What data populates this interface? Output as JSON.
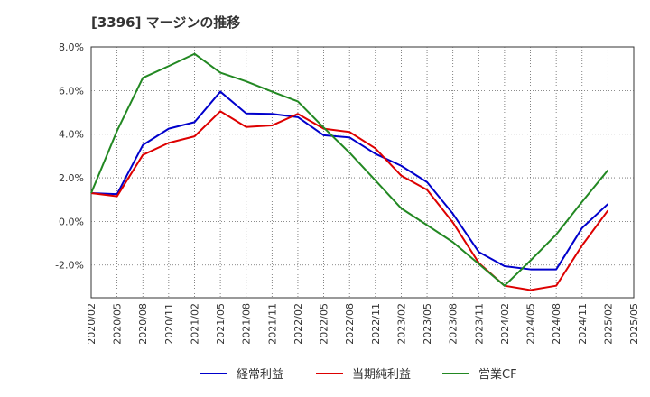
{
  "title": "[3396]  マージンの推移",
  "chart_data": {
    "type": "line",
    "title": "[3396]  マージンの推移",
    "xlabel": "",
    "ylabel": "",
    "x": [
      "2020/02",
      "2020/05",
      "2020/08",
      "2020/11",
      "2021/02",
      "2021/05",
      "2021/08",
      "2021/11",
      "2022/02",
      "2022/05",
      "2022/08",
      "2022/11",
      "2023/02",
      "2023/05",
      "2023/08",
      "2023/11",
      "2024/02",
      "2024/05",
      "2024/08",
      "2024/11",
      "2025/02",
      "2025/05"
    ],
    "ylim": [
      -3.5,
      8.0
    ],
    "yticks": [
      -2.0,
      0.0,
      2.0,
      4.0,
      6.0,
      8.0
    ],
    "ytick_labels": [
      "-2.0%",
      "0.0%",
      "2.0%",
      "4.0%",
      "6.0%",
      "8.0%"
    ],
    "grid": true,
    "legend_position": "bottom",
    "series": [
      {
        "name": "経常利益",
        "color": "#0000cc",
        "values": [
          1.3,
          1.25,
          3.5,
          4.25,
          4.55,
          5.95,
          4.95,
          4.93,
          4.78,
          3.95,
          3.85,
          3.1,
          2.55,
          1.8,
          0.35,
          -1.4,
          -2.05,
          -2.2,
          -2.2,
          -0.3,
          0.8,
          null
        ]
      },
      {
        "name": "当期純利益",
        "color": "#dd0000",
        "values": [
          1.3,
          1.15,
          3.05,
          3.6,
          3.9,
          5.05,
          4.33,
          4.4,
          4.93,
          4.25,
          4.1,
          3.35,
          2.1,
          1.45,
          -0.05,
          -1.9,
          -2.95,
          -3.15,
          -2.95,
          -1.1,
          0.5,
          null
        ]
      },
      {
        "name": "営業CF",
        "color": "#228822",
        "values": [
          1.3,
          4.15,
          6.58,
          7.12,
          7.68,
          6.82,
          6.42,
          5.95,
          5.5,
          4.3,
          3.15,
          1.88,
          0.6,
          -0.17,
          -0.95,
          -1.95,
          -2.95,
          -1.8,
          -0.6,
          0.9,
          2.35,
          null
        ]
      }
    ]
  }
}
